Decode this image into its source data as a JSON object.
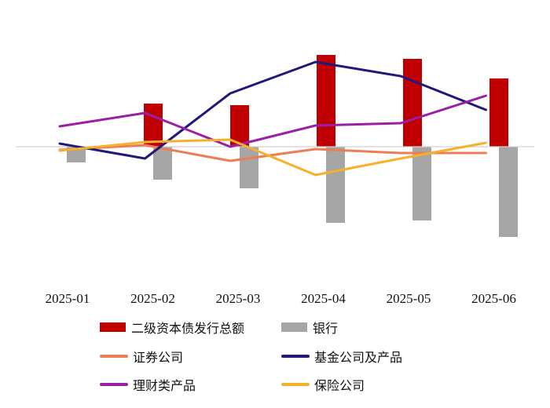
{
  "chart_data": {
    "type": "bar+line",
    "categories": [
      "2025-01",
      "2025-02",
      "2025-03",
      "2025-04",
      "2025-05",
      "2025-06"
    ],
    "ylim": [
      -140,
      120
    ],
    "grid": false,
    "legend_position": "bottom",
    "bar_series": [
      {
        "name": "二级资本债发行总额",
        "color": "#c00000",
        "values": [
          0,
          55,
          53,
          117,
          112,
          87
        ]
      },
      {
        "name": "银行",
        "color": "#a6a6a6",
        "values": [
          -20,
          -42,
          -53,
          -97,
          -94,
          -115
        ]
      }
    ],
    "line_series": [
      {
        "name": "证券公司",
        "color": "#ed7d55",
        "values": [
          -4,
          2,
          -18,
          -3,
          -8,
          -8
        ]
      },
      {
        "name": "基金公司及产品",
        "color": "#1f1a7a",
        "values": [
          4,
          -15,
          68,
          108,
          90,
          47
        ]
      },
      {
        "name": "理财类产品",
        "color": "#9b1fa5",
        "values": [
          26,
          43,
          0,
          27,
          30,
          65
        ]
      },
      {
        "name": "保险公司",
        "color": "#f5b12c",
        "values": [
          -5,
          6,
          9,
          -36,
          -15,
          5
        ]
      }
    ]
  },
  "legend": {
    "items": [
      {
        "label": "二级资本债发行总额",
        "kind": "rect",
        "color": "#c00000"
      },
      {
        "label": "银行",
        "kind": "rect",
        "color": "#a6a6a6"
      },
      {
        "label": "证券公司",
        "kind": "line",
        "color": "#ed7d55"
      },
      {
        "label": "基金公司及产品",
        "kind": "line",
        "color": "#1f1a7a"
      },
      {
        "label": "理财类产品",
        "kind": "line",
        "color": "#9b1fa5"
      },
      {
        "label": "保险公司",
        "kind": "line",
        "color": "#f5b12c"
      }
    ]
  }
}
